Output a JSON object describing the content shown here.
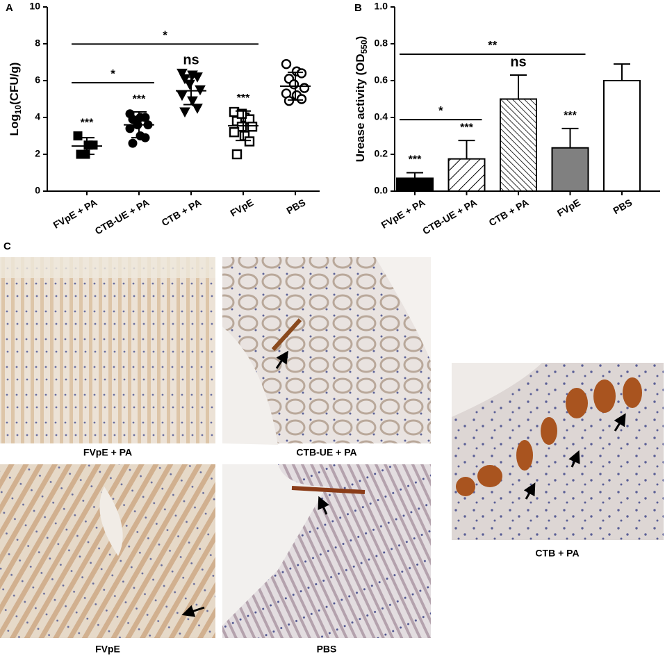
{
  "chart_data": [
    {
      "type": "scatter",
      "panel": "A",
      "y_label": {
        "main": "Log",
        "sub": "10",
        "end": "(CFU/g)"
      },
      "categories": [
        "FVpE + PA",
        "CTB-UE + PA",
        "CTB + PA",
        "FVpE",
        "PBS"
      ],
      "groups": [
        {
          "marker": "square",
          "filled": true,
          "values": [
            3.0,
            2.5,
            2.5,
            2.0,
            2.0
          ],
          "mean": 2.45,
          "sd": 0.45
        },
        {
          "marker": "circle",
          "filled": true,
          "values": [
            4.2,
            4.0,
            4.0,
            3.9,
            3.6,
            3.6,
            3.4,
            3.0,
            2.9,
            2.6
          ],
          "mean": 3.6,
          "sd": 0.7
        },
        {
          "marker": "triangle-down",
          "filled": true,
          "values": [
            6.4,
            6.3,
            6.2,
            6.1,
            5.8,
            5.5,
            5.2,
            4.9,
            4.5,
            4.3
          ],
          "mean": 5.45,
          "sd": 0.75
        },
        {
          "marker": "square",
          "filled": false,
          "values": [
            4.3,
            4.0,
            3.9,
            3.8,
            3.5,
            3.5,
            3.2,
            3.0,
            2.7,
            2.0,
            4.2
          ],
          "mean": 3.55,
          "sd": 0.8
        },
        {
          "marker": "circle",
          "filled": false,
          "values": [
            6.9,
            6.5,
            6.4,
            6.1,
            5.8,
            5.6,
            5.3,
            5.2,
            5.0,
            4.9
          ],
          "mean": 5.7,
          "sd": 0.75
        }
      ],
      "ylim": [
        0,
        10
      ],
      "yticks": [
        0,
        2,
        4,
        6,
        8,
        10
      ],
      "annotations": [
        {
          "text": "***",
          "category": 0
        },
        {
          "text": "***",
          "category": 1
        },
        {
          "text": "ns",
          "category": 2
        },
        {
          "text": "***",
          "category": 3
        }
      ],
      "brackets": [
        {
          "text": "*",
          "from": 0,
          "to": 1
        },
        {
          "text": "*",
          "from": 0,
          "to": 3
        }
      ]
    },
    {
      "type": "bar",
      "panel": "B",
      "y_label": {
        "main": "Urease activity (OD",
        "sub": "550",
        "end": ")"
      },
      "categories": [
        "FVpE + PA",
        "CTB-UE + PA",
        "CTB + PA",
        "FVpE",
        "PBS"
      ],
      "values": [
        0.07,
        0.175,
        0.5,
        0.235,
        0.6
      ],
      "errors": [
        0.03,
        0.1,
        0.13,
        0.105,
        0.09
      ],
      "fills": [
        "#000000",
        "hatch-wide",
        "hatch-narrow",
        "#808080",
        "#ffffff"
      ],
      "ylim": [
        0,
        1
      ],
      "yticks": [
        {
          "value": 0,
          "label": "0.0"
        },
        0.2,
        0.4,
        0.6,
        0.8,
        {
          "value": 1,
          "label": "1.0"
        }
      ],
      "annotations": [
        {
          "text": "***",
          "category": 0
        },
        {
          "text": "***",
          "category": 1
        },
        {
          "text": "ns",
          "category": 2
        },
        {
          "text": "***",
          "category": 3
        }
      ],
      "brackets": [
        {
          "text": "*",
          "from": 0,
          "to": 1
        },
        {
          "text": "**",
          "from": 0,
          "to": 3
        }
      ]
    }
  ],
  "figure": {
    "panel": "C",
    "images": [
      {
        "label": "FVpE + PA"
      },
      {
        "label": "CTB-UE + PA"
      },
      {
        "label": "FVpE"
      },
      {
        "label": "PBS"
      },
      {
        "label": "CTB + PA"
      }
    ]
  }
}
